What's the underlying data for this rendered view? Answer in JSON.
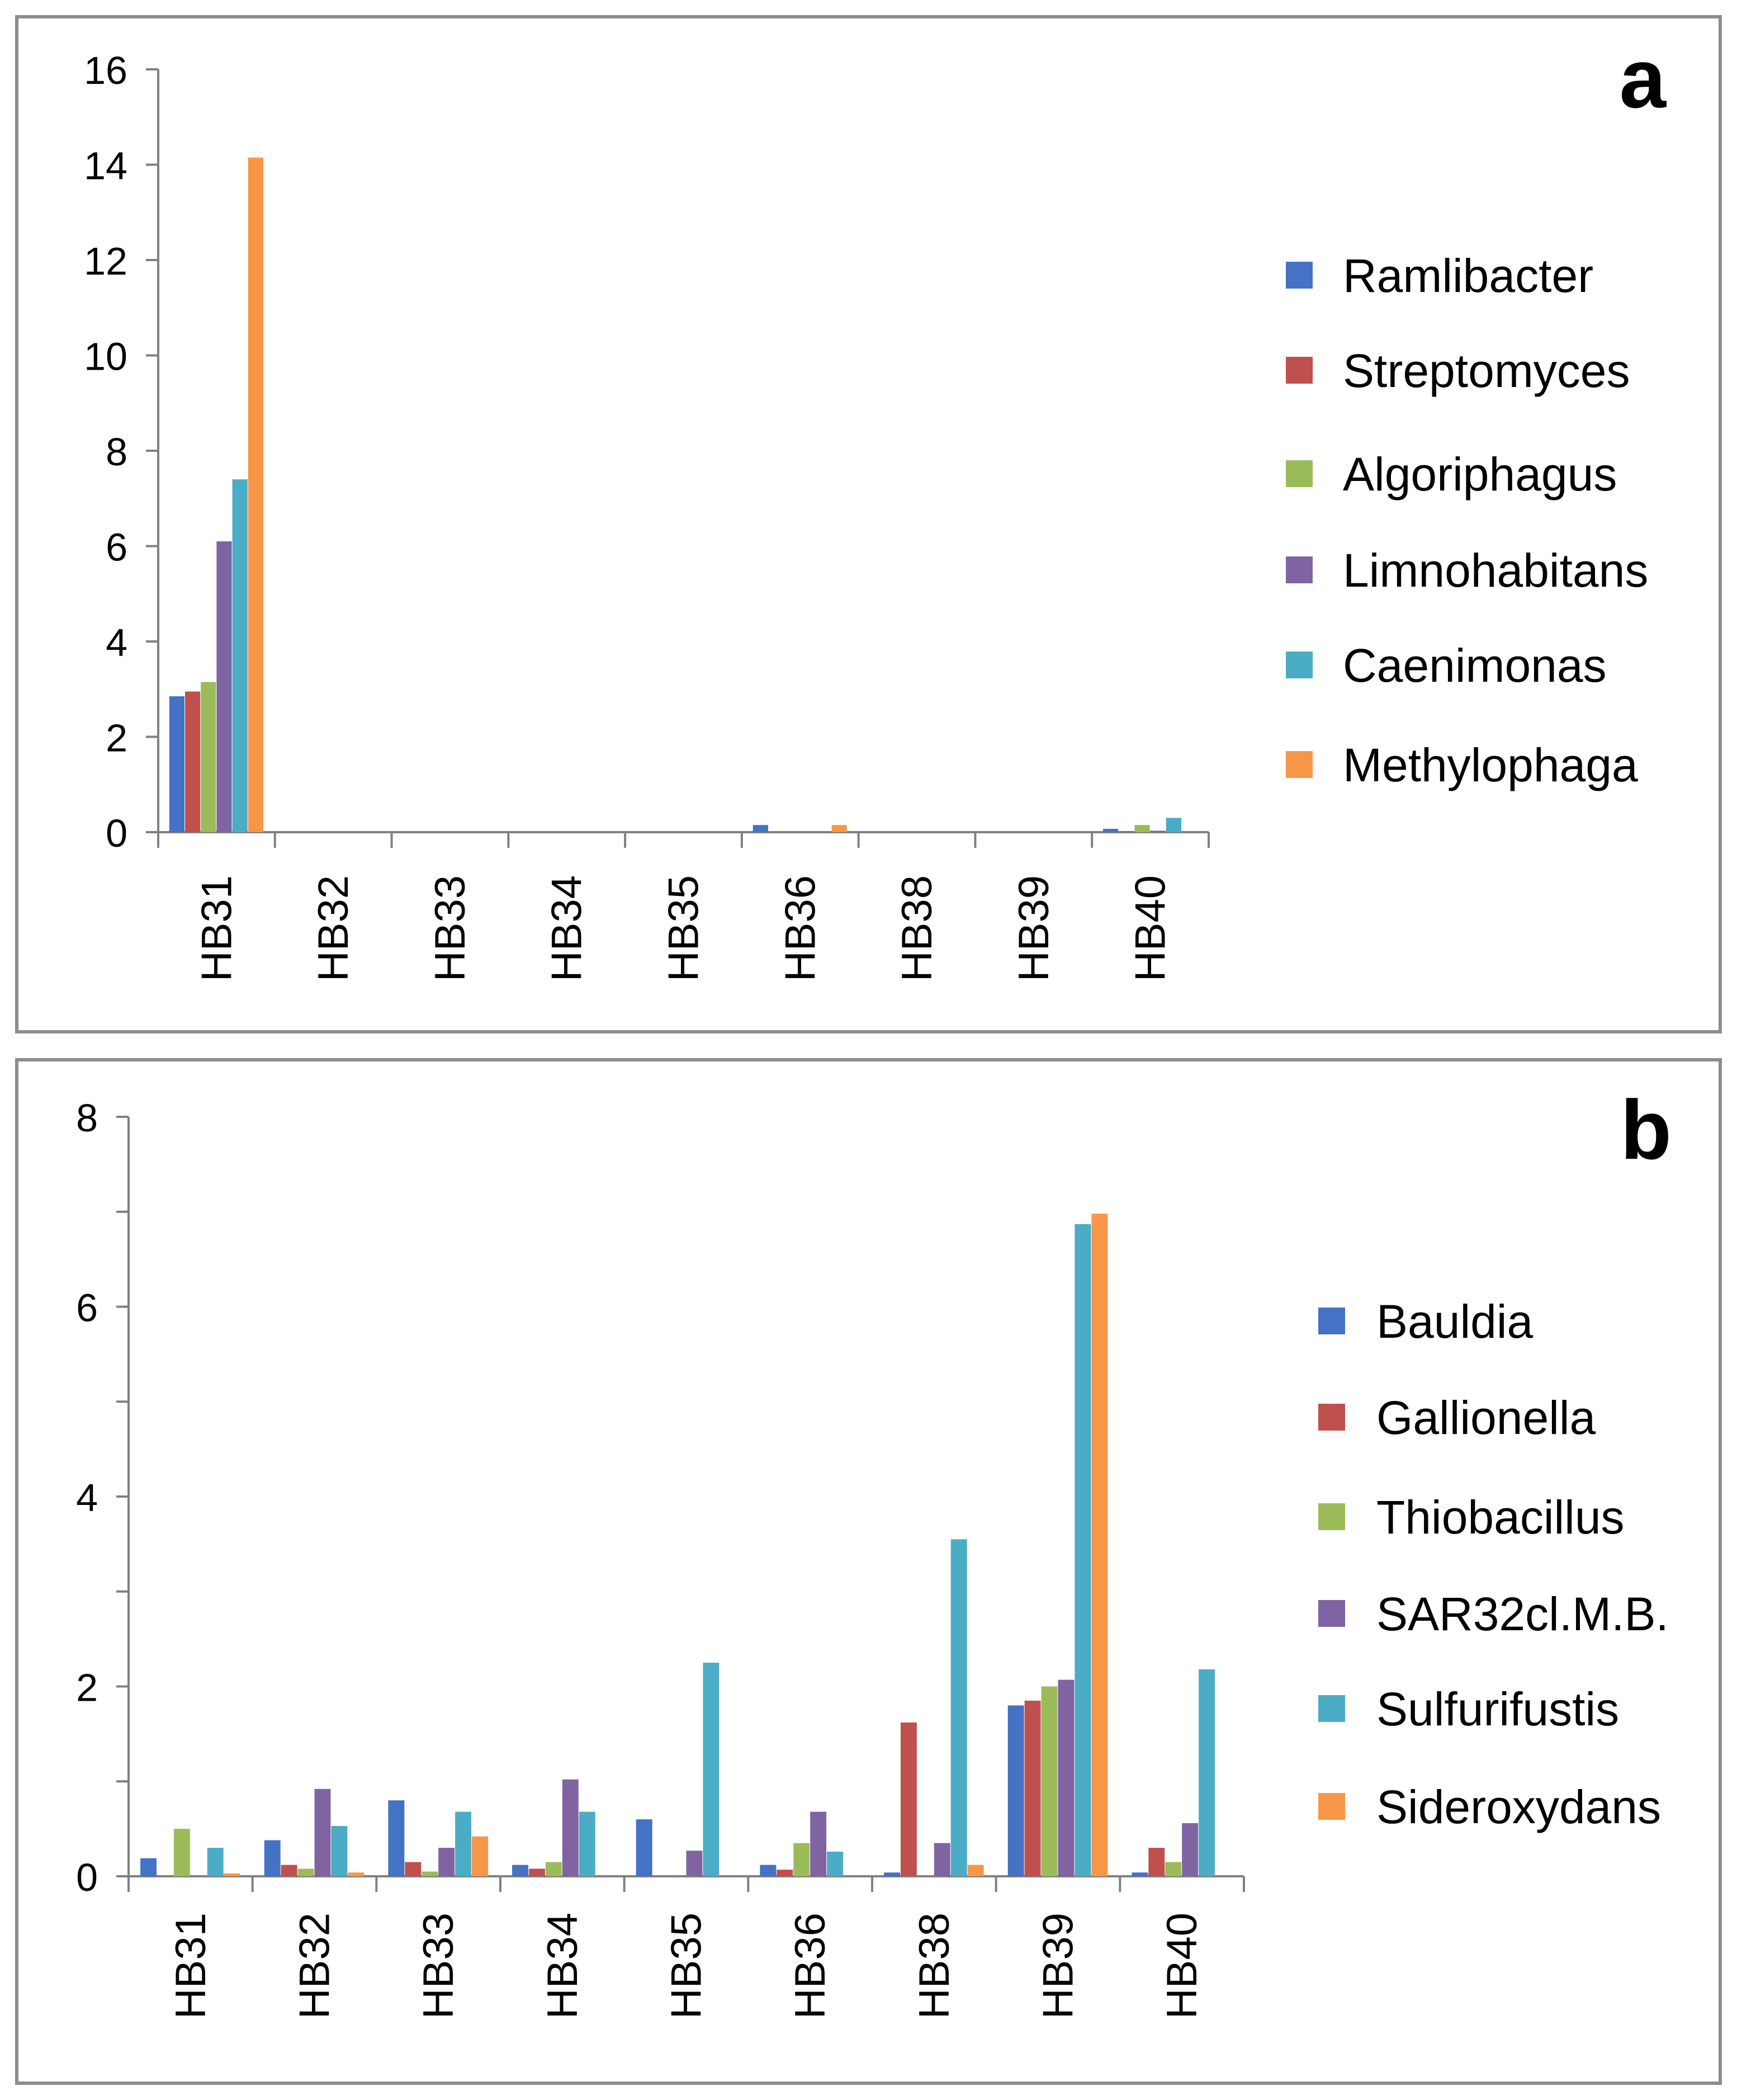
{
  "chart_data": [
    {
      "type": "bar",
      "panel_label": "a",
      "categories": [
        "HB31",
        "HB32",
        "HB33",
        "HB34",
        "HB35",
        "HB36",
        "HB38",
        "HB39",
        "HB40"
      ],
      "ylim": [
        0,
        16
      ],
      "yticks": [
        "0",
        "2",
        "4",
        "6",
        "8",
        "10",
        "12",
        "14",
        "16"
      ],
      "legend_position": "right",
      "series": [
        {
          "name": "Ramlibacter",
          "color": "#4472C4",
          "values": [
            2.85,
            0,
            0,
            0,
            0,
            0.15,
            0,
            0,
            0.07
          ]
        },
        {
          "name": "Streptomyces",
          "color": "#C0504D",
          "values": [
            2.95,
            0,
            0,
            0,
            0,
            0,
            0,
            0,
            0.02
          ]
        },
        {
          "name": "Algoriphagus",
          "color": "#9BBB59",
          "values": [
            3.15,
            0,
            0,
            0,
            0,
            0,
            0,
            0,
            0.15
          ]
        },
        {
          "name": "Limnohabitans",
          "color": "#8064A2",
          "values": [
            6.1,
            0,
            0,
            0,
            0,
            0,
            0,
            0,
            0.03
          ]
        },
        {
          "name": "Caenimonas",
          "color": "#4BACC6",
          "values": [
            7.4,
            0,
            0,
            0,
            0,
            0,
            0,
            0,
            0.3
          ]
        },
        {
          "name": "Methylophaga",
          "color": "#F79646",
          "values": [
            14.15,
            0,
            0,
            0,
            0,
            0.15,
            0,
            0,
            0
          ]
        }
      ]
    },
    {
      "type": "bar",
      "panel_label": "b",
      "categories": [
        "HB31",
        "HB32",
        "HB33",
        "HB34",
        "HB35",
        "HB36",
        "HB38",
        "HB39",
        "HB40"
      ],
      "ylim": [
        0,
        8
      ],
      "yticks": [
        "0",
        "2",
        "4",
        "6",
        "8"
      ],
      "legend_position": "right",
      "series": [
        {
          "name": "Bauldia",
          "color": "#4472C4",
          "values": [
            0.19,
            0.38,
            0.8,
            0.12,
            0.6,
            0.12,
            0.04,
            1.8,
            0.04
          ]
        },
        {
          "name": "Gallionella",
          "color": "#C0504D",
          "values": [
            0,
            0.12,
            0.15,
            0.08,
            0,
            0.07,
            1.62,
            1.85,
            0.3
          ]
        },
        {
          "name": "Thiobacillus",
          "color": "#9BBB59",
          "values": [
            0.5,
            0.08,
            0.05,
            0.15,
            0,
            0.35,
            0,
            2.0,
            0.15
          ]
        },
        {
          "name": "SAR32cl.M.B.",
          "color": "#8064A2",
          "values": [
            0,
            0.92,
            0.3,
            1.02,
            0.27,
            0.68,
            0.35,
            2.07,
            0.56
          ]
        },
        {
          "name": "Sulfurifustis",
          "color": "#4BACC6",
          "values": [
            0.3,
            0.53,
            0.68,
            0.68,
            2.25,
            0.26,
            3.55,
            6.87,
            2.18
          ]
        },
        {
          "name": "Sideroxydans",
          "color": "#F79646",
          "values": [
            0.03,
            0.04,
            0.42,
            0,
            0,
            0,
            0.12,
            6.98,
            0
          ]
        }
      ]
    }
  ]
}
